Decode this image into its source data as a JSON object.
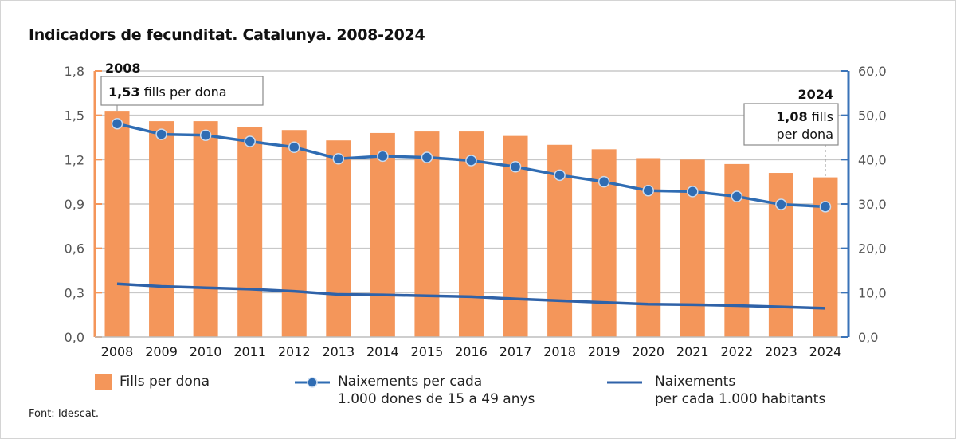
{
  "colors": {
    "bar": "#f4965a",
    "left_axis": "#f4965a",
    "right_axis": "#3a73b8",
    "line_dots": "#2f6cb3",
    "line_plain": "#2f62a8",
    "grid": "#c8c8c8"
  },
  "source": "Font: Idescat.",
  "chart_data": {
    "type": "bar",
    "title": "Indicadors de fecunditat. Catalunya. 2008-2024",
    "xlabel": "",
    "ylabel": "",
    "categories": [
      "2008",
      "2009",
      "2010",
      "2011",
      "2012",
      "2013",
      "2014",
      "2015",
      "2016",
      "2017",
      "2018",
      "2019",
      "2020",
      "2021",
      "2022",
      "2023",
      "2024"
    ],
    "y_left": {
      "range": [
        0,
        1.8
      ],
      "ticks": [
        "0,0",
        "0,3",
        "0,6",
        "0,9",
        "1,2",
        "1,5",
        "1,8"
      ],
      "tick_values": [
        0,
        0.3,
        0.6,
        0.9,
        1.2,
        1.5,
        1.8
      ]
    },
    "y_right": {
      "range": [
        0,
        60
      ],
      "ticks": [
        "0,0",
        "10,0",
        "20,0",
        "30,0",
        "40,0",
        "50,0",
        "60,0"
      ],
      "tick_values": [
        0,
        10,
        20,
        30,
        40,
        50,
        60
      ]
    },
    "grid": true,
    "legend_position": "bottom",
    "series": [
      {
        "name": "Fills per dona",
        "type": "bar",
        "axis": "left",
        "values": [
          1.53,
          1.46,
          1.46,
          1.42,
          1.4,
          1.33,
          1.38,
          1.39,
          1.39,
          1.36,
          1.3,
          1.27,
          1.21,
          1.2,
          1.17,
          1.11,
          1.08
        ]
      },
      {
        "name": "Naixements per cada 1.000 dones de 15 a 49 anys",
        "type": "line-markers",
        "axis": "right",
        "values": [
          48.1,
          45.7,
          45.5,
          44.1,
          42.8,
          40.2,
          40.8,
          40.5,
          39.8,
          38.4,
          36.5,
          35.0,
          33.0,
          32.8,
          31.7,
          29.9,
          29.4
        ]
      },
      {
        "name": "Naixements per cada 1.000 habitants",
        "type": "line",
        "axis": "right",
        "values": [
          12.0,
          11.4,
          11.1,
          10.8,
          10.3,
          9.6,
          9.5,
          9.3,
          9.1,
          8.6,
          8.2,
          7.8,
          7.4,
          7.3,
          7.1,
          6.8,
          6.5
        ]
      }
    ],
    "annotations": [
      {
        "year": "2008",
        "value_bold": "1,53",
        "text": "fills per dona"
      },
      {
        "year": "2024",
        "value_bold": "1,08",
        "text_line1": "fills",
        "text_line2": "per dona"
      }
    ]
  },
  "legend": [
    {
      "line1": "Fills per dona"
    },
    {
      "line1": "Naixements per cada",
      "line2": "1.000 dones de 15 a 49 anys"
    },
    {
      "line1": "Naixements",
      "line2": "per cada 1.000 habitants"
    }
  ]
}
